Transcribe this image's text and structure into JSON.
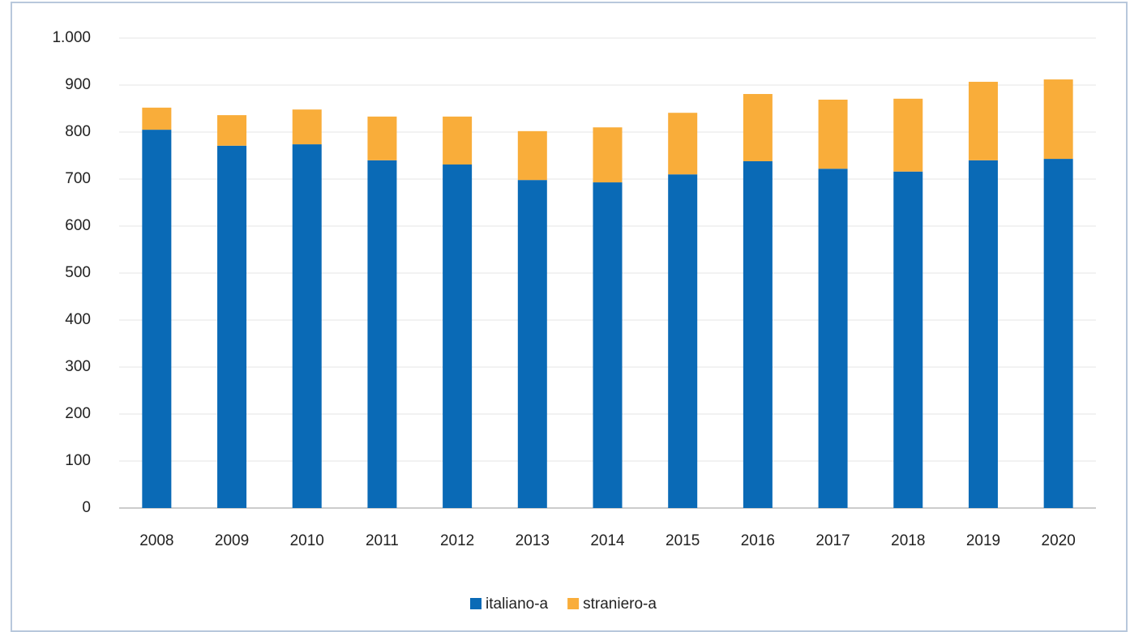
{
  "chart_data": {
    "type": "stacked-bar",
    "categories": [
      "2008",
      "2009",
      "2010",
      "2011",
      "2012",
      "2013",
      "2014",
      "2015",
      "2016",
      "2017",
      "2018",
      "2019",
      "2020"
    ],
    "series": [
      {
        "name": "italiano-a",
        "color": "#0a6ab6",
        "values": [
          805,
          771,
          774,
          740,
          731,
          698,
          693,
          710,
          738,
          722,
          716,
          740,
          743
        ]
      },
      {
        "name": "straniero-a",
        "color": "#f9ad3a",
        "values": [
          47,
          65,
          74,
          93,
          102,
          104,
          117,
          131,
          143,
          147,
          155,
          167,
          169
        ]
      }
    ],
    "ylim": [
      0,
      1000
    ],
    "yticks": [
      0,
      100,
      200,
      300,
      400,
      500,
      600,
      700,
      800,
      900,
      {
        "value": 1000,
        "label": "1.000"
      }
    ],
    "grid": true,
    "legend": "bottom"
  }
}
